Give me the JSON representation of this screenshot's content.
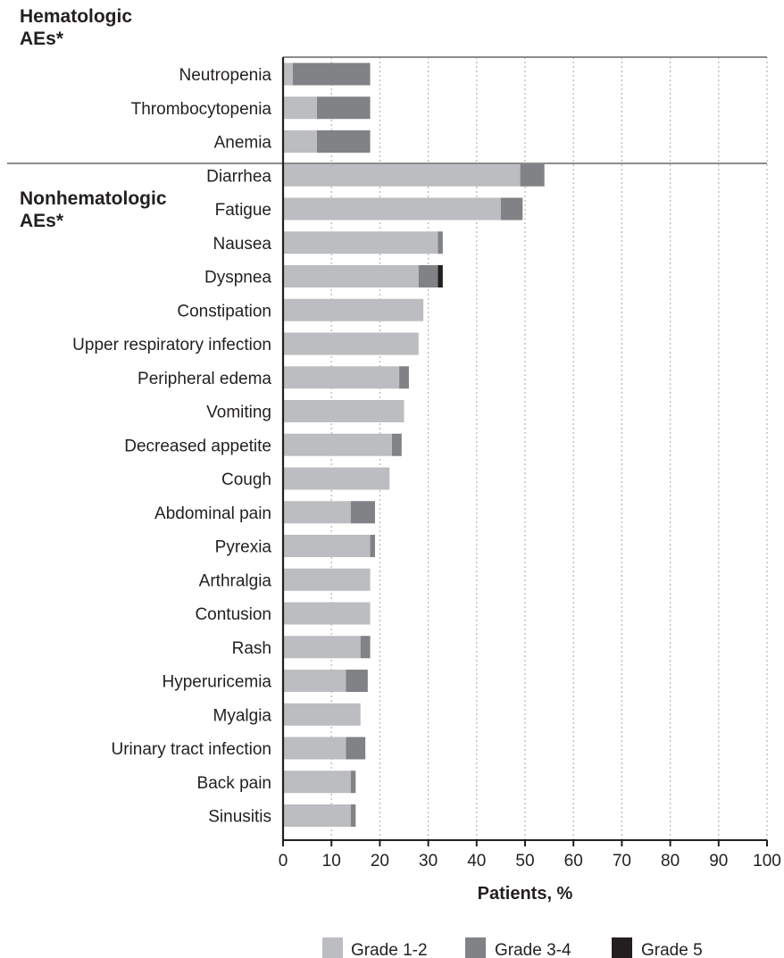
{
  "chart_data": {
    "type": "bar",
    "orientation": "horizontal",
    "stacked": true,
    "sections": [
      {
        "label_lines": [
          "Hematologic",
          "AEs*"
        ],
        "categories": [
          "Neutropenia",
          "Thrombocytopenia",
          "Anemia"
        ]
      },
      {
        "label_lines": [
          "Nonhematologic",
          "AEs*"
        ],
        "categories": [
          "Diarrhea",
          "Fatigue",
          "Nausea",
          "Dyspnea",
          "Constipation",
          "Upper respiratory infection",
          "Peripheral edema",
          "Vomiting",
          "Decreased appetite",
          "Cough",
          "Abdominal pain",
          "Pyrexia",
          "Arthralgia",
          "Contusion",
          "Rash",
          "Hyperuricemia",
          "Myalgia",
          "Urinary tract infection",
          "Back pain",
          "Sinusitis"
        ]
      }
    ],
    "categories": [
      "Neutropenia",
      "Thrombocytopenia",
      "Anemia",
      "Diarrhea",
      "Fatigue",
      "Nausea",
      "Dyspnea",
      "Constipation",
      "Upper respiratory infection",
      "Peripheral edema",
      "Vomiting",
      "Decreased appetite",
      "Cough",
      "Abdominal pain",
      "Pyrexia",
      "Arthralgia",
      "Contusion",
      "Rash",
      "Hyperuricemia",
      "Myalgia",
      "Urinary tract infection",
      "Back pain",
      "Sinusitis"
    ],
    "series": [
      {
        "name": "Grade 1-2",
        "color": "#bcbdc0",
        "values": [
          2,
          7,
          7,
          49,
          45,
          32,
          28,
          29,
          28,
          24,
          25,
          22.5,
          22,
          14,
          18,
          18,
          18,
          16,
          13,
          16,
          13,
          14,
          14
        ]
      },
      {
        "name": "Grade 3-4",
        "color": "#808285",
        "values": [
          16,
          11,
          11,
          5,
          4.5,
          1,
          4,
          0,
          0,
          2,
          0,
          2,
          0,
          5,
          1,
          0,
          0,
          2,
          4.5,
          0,
          4,
          1,
          1
        ]
      },
      {
        "name": "Grade 5",
        "color": "#231f20",
        "values": [
          0,
          0,
          0,
          0,
          0,
          0,
          1,
          0,
          0,
          0,
          0,
          0,
          0,
          0,
          0,
          0,
          0,
          0,
          0,
          0,
          0,
          0,
          0
        ]
      }
    ],
    "xlabel": "Patients, %",
    "xlim": [
      0,
      100
    ],
    "xticks": [
      0,
      10,
      20,
      30,
      40,
      50,
      60,
      70,
      80,
      90,
      100
    ],
    "grid": "vertical dotted",
    "legend_position": "bottom"
  }
}
